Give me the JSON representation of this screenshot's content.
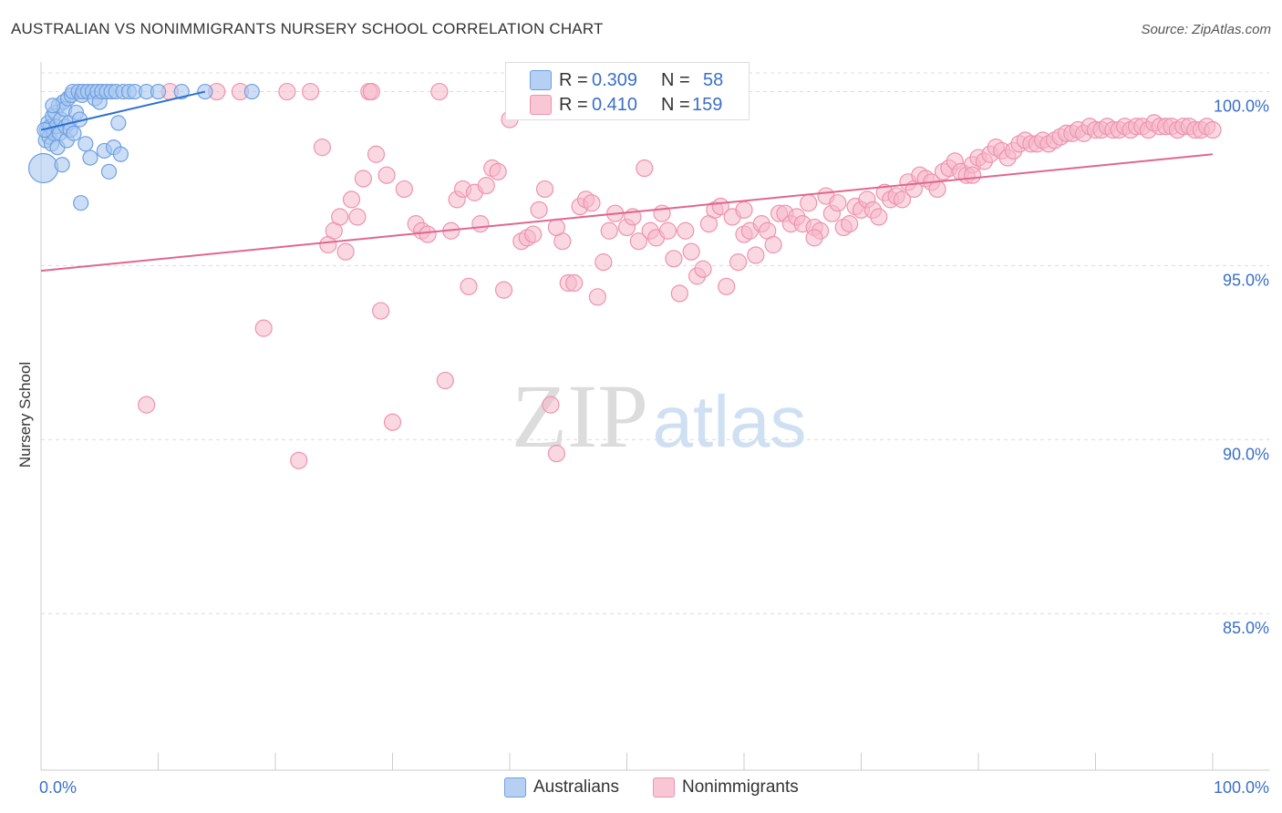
{
  "title": "AUSTRALIAN VS NONIMMIGRANTS NURSERY SCHOOL CORRELATION CHART",
  "source": "Source: ZipAtlas.com",
  "watermark": {
    "zip": "ZIP",
    "atlas": "atlas"
  },
  "colors": {
    "blue_fill": "#a8c8f0",
    "blue_stroke": "#6f9fe0",
    "blue_line": "#2a6fd0",
    "pink_fill": "#f6b8cb",
    "pink_stroke": "#ee93ae",
    "pink_line": "#e0678f",
    "axis_text": "#3a6fc9",
    "grid": "#dcdcdc"
  },
  "legend": {
    "rows": [
      {
        "r_label": "R =",
        "r_value": "0.309",
        "n_label": "N =",
        "n_value": "58"
      },
      {
        "r_label": "R =",
        "r_value": "0.410",
        "n_label": "N =",
        "n_value": "159"
      }
    ]
  },
  "bottom_legend": {
    "australians": "Australians",
    "nonimmigrants": "Nonimmigrants"
  },
  "chart_data": {
    "type": "scatter",
    "title": "AUSTRALIAN VS NONIMMIGRANTS NURSERY SCHOOL CORRELATION CHART",
    "xlabel": "",
    "ylabel": "Nursery School",
    "xlim": [
      0,
      100
    ],
    "ylim": [
      80.5,
      100.8
    ],
    "x_tick_labels": [
      "0.0%",
      "100.0%"
    ],
    "y_ticks": [
      85,
      90,
      95,
      100
    ],
    "y_tick_labels": [
      "85.0%",
      "90.0%",
      "95.0%",
      "100.0%"
    ],
    "grid": true,
    "series": [
      {
        "name": "Australians",
        "r": 0.309,
        "n": 58,
        "trend": {
          "x": [
            0,
            14
          ],
          "y": [
            98.9,
            100.0
          ]
        },
        "points": [
          [
            0.2,
            97.8
          ],
          [
            0.4,
            98.6
          ],
          [
            0.5,
            98.9
          ],
          [
            0.6,
            99.1
          ],
          [
            0.7,
            98.7
          ],
          [
            0.8,
            99.0
          ],
          [
            0.9,
            98.5
          ],
          [
            1.0,
            99.3
          ],
          [
            1.1,
            98.8
          ],
          [
            1.2,
            99.4
          ],
          [
            1.3,
            99.0
          ],
          [
            1.4,
            98.4
          ],
          [
            1.5,
            99.6
          ],
          [
            1.6,
            98.8
          ],
          [
            1.7,
            99.2
          ],
          [
            1.8,
            97.9
          ],
          [
            1.9,
            99.7
          ],
          [
            2.0,
            99.5
          ],
          [
            2.1,
            99.0
          ],
          [
            2.2,
            98.6
          ],
          [
            2.3,
            99.8
          ],
          [
            2.4,
            99.1
          ],
          [
            2.5,
            98.9
          ],
          [
            2.6,
            99.9
          ],
          [
            2.7,
            100.0
          ],
          [
            2.8,
            98.8
          ],
          [
            3.0,
            99.4
          ],
          [
            3.2,
            100.0
          ],
          [
            3.3,
            99.2
          ],
          [
            3.4,
            96.8
          ],
          [
            3.5,
            99.9
          ],
          [
            3.6,
            100.0
          ],
          [
            3.8,
            98.5
          ],
          [
            4.0,
            100.0
          ],
          [
            4.2,
            98.1
          ],
          [
            4.4,
            100.0
          ],
          [
            4.6,
            99.8
          ],
          [
            4.8,
            100.0
          ],
          [
            5.0,
            99.7
          ],
          [
            5.2,
            100.0
          ],
          [
            5.4,
            98.3
          ],
          [
            5.6,
            100.0
          ],
          [
            5.8,
            97.7
          ],
          [
            6.0,
            100.0
          ],
          [
            6.2,
            98.4
          ],
          [
            6.4,
            100.0
          ],
          [
            6.6,
            99.1
          ],
          [
            6.8,
            98.2
          ],
          [
            7.0,
            100.0
          ],
          [
            7.5,
            100.0
          ],
          [
            8.0,
            100.0
          ],
          [
            9.0,
            100.0
          ],
          [
            10.0,
            100.0
          ],
          [
            12.0,
            100.0
          ],
          [
            14.0,
            100.0
          ],
          [
            18.0,
            100.0
          ],
          [
            0.3,
            98.9
          ],
          [
            1.0,
            99.6
          ]
        ]
      },
      {
        "name": "Nonimmigrants",
        "r": 0.41,
        "n": 159,
        "trend": {
          "x": [
            0,
            100
          ],
          "y": [
            94.85,
            98.2
          ]
        },
        "points": [
          [
            9,
            91.0
          ],
          [
            11,
            100.0
          ],
          [
            17,
            100.0
          ],
          [
            19,
            93.2
          ],
          [
            21,
            100.0
          ],
          [
            22,
            89.4
          ],
          [
            23,
            100.0
          ],
          [
            24,
            98.4
          ],
          [
            24.5,
            95.6
          ],
          [
            25,
            96.0
          ],
          [
            25.5,
            96.4
          ],
          [
            26,
            95.4
          ],
          [
            26.5,
            96.9
          ],
          [
            27,
            96.4
          ],
          [
            27.5,
            97.5
          ],
          [
            28,
            100.0
          ],
          [
            28.2,
            100.0
          ],
          [
            28.6,
            98.2
          ],
          [
            29,
            93.7
          ],
          [
            29.5,
            97.6
          ],
          [
            30,
            90.5
          ],
          [
            31,
            97.2
          ],
          [
            32,
            96.2
          ],
          [
            32.5,
            96.0
          ],
          [
            33,
            95.9
          ],
          [
            34,
            100.0
          ],
          [
            34.5,
            91.7
          ],
          [
            35,
            96.0
          ],
          [
            35.5,
            96.9
          ],
          [
            36,
            97.2
          ],
          [
            36.5,
            94.4
          ],
          [
            37,
            97.1
          ],
          [
            38,
            97.3
          ],
          [
            38.5,
            97.8
          ],
          [
            39,
            97.7
          ],
          [
            39.5,
            94.3
          ],
          [
            40,
            99.2
          ],
          [
            41,
            95.7
          ],
          [
            41.5,
            95.8
          ],
          [
            42,
            95.9
          ],
          [
            42.5,
            96.6
          ],
          [
            43,
            97.2
          ],
          [
            43.5,
            91.0
          ],
          [
            44,
            89.6
          ],
          [
            44.5,
            95.7
          ],
          [
            45,
            94.5
          ],
          [
            45.5,
            94.5
          ],
          [
            46,
            96.7
          ],
          [
            46.5,
            96.9
          ],
          [
            47,
            96.8
          ],
          [
            47.5,
            94.1
          ],
          [
            48,
            95.1
          ],
          [
            48.5,
            96.0
          ],
          [
            49,
            96.5
          ],
          [
            50,
            96.1
          ],
          [
            50.5,
            96.4
          ],
          [
            51,
            95.7
          ],
          [
            51.5,
            97.8
          ],
          [
            52,
            96.0
          ],
          [
            52.5,
            95.8
          ],
          [
            53,
            96.5
          ],
          [
            53.5,
            96.0
          ],
          [
            54,
            95.2
          ],
          [
            54.5,
            94.2
          ],
          [
            55,
            96.0
          ],
          [
            55.5,
            95.4
          ],
          [
            56,
            94.7
          ],
          [
            56.5,
            94.9
          ],
          [
            57,
            96.2
          ],
          [
            57.5,
            96.6
          ],
          [
            58,
            96.7
          ],
          [
            58.5,
            94.4
          ],
          [
            59,
            96.4
          ],
          [
            59.5,
            95.1
          ],
          [
            60,
            95.9
          ],
          [
            60.5,
            96.0
          ],
          [
            61,
            95.3
          ],
          [
            61.5,
            96.2
          ],
          [
            62,
            96.0
          ],
          [
            62.5,
            95.6
          ],
          [
            63,
            96.5
          ],
          [
            63.5,
            96.5
          ],
          [
            64,
            96.2
          ],
          [
            64.5,
            96.4
          ],
          [
            65,
            96.2
          ],
          [
            65.5,
            96.8
          ],
          [
            66,
            96.1
          ],
          [
            66.5,
            96.0
          ],
          [
            67,
            97.0
          ],
          [
            67.5,
            96.5
          ],
          [
            68,
            96.8
          ],
          [
            68.5,
            96.1
          ],
          [
            69,
            96.2
          ],
          [
            69.5,
            96.7
          ],
          [
            70,
            96.6
          ],
          [
            70.5,
            96.9
          ],
          [
            71,
            96.6
          ],
          [
            71.5,
            96.4
          ],
          [
            72,
            97.1
          ],
          [
            72.5,
            96.9
          ],
          [
            73,
            97.0
          ],
          [
            73.5,
            96.9
          ],
          [
            74,
            97.4
          ],
          [
            74.5,
            97.2
          ],
          [
            75,
            97.6
          ],
          [
            75.5,
            97.5
          ],
          [
            76,
            97.4
          ],
          [
            76.5,
            97.2
          ],
          [
            77,
            97.7
          ],
          [
            77.5,
            97.8
          ],
          [
            78,
            98.0
          ],
          [
            78.5,
            97.7
          ],
          [
            79,
            97.6
          ],
          [
            79.5,
            97.9
          ],
          [
            80,
            98.1
          ],
          [
            80.5,
            98.0
          ],
          [
            81,
            98.2
          ],
          [
            81.5,
            98.4
          ],
          [
            82,
            98.3
          ],
          [
            82.5,
            98.1
          ],
          [
            83,
            98.3
          ],
          [
            83.5,
            98.5
          ],
          [
            84,
            98.6
          ],
          [
            84.5,
            98.5
          ],
          [
            85,
            98.5
          ],
          [
            85.5,
            98.6
          ],
          [
            86,
            98.5
          ],
          [
            86.5,
            98.6
          ],
          [
            87,
            98.7
          ],
          [
            87.5,
            98.8
          ],
          [
            88,
            98.8
          ],
          [
            88.5,
            98.9
          ],
          [
            89,
            98.8
          ],
          [
            89.5,
            99.0
          ],
          [
            90,
            98.9
          ],
          [
            90.5,
            98.9
          ],
          [
            91,
            99.0
          ],
          [
            91.5,
            98.9
          ],
          [
            92,
            98.9
          ],
          [
            92.5,
            99.0
          ],
          [
            93,
            98.9
          ],
          [
            93.5,
            99.0
          ],
          [
            94,
            99.0
          ],
          [
            94.5,
            98.9
          ],
          [
            95,
            99.1
          ],
          [
            95.5,
            99.0
          ],
          [
            96,
            99.0
          ],
          [
            96.5,
            99.0
          ],
          [
            97,
            98.9
          ],
          [
            97.5,
            99.0
          ],
          [
            98,
            99.0
          ],
          [
            98.5,
            98.9
          ],
          [
            99,
            98.9
          ],
          [
            99.5,
            99.0
          ],
          [
            100,
            98.9
          ],
          [
            15,
            100.0
          ],
          [
            37.5,
            96.2
          ],
          [
            66,
            95.8
          ],
          [
            79.5,
            97.6
          ],
          [
            44,
            96.1
          ],
          [
            60,
            96.6
          ]
        ]
      }
    ]
  }
}
